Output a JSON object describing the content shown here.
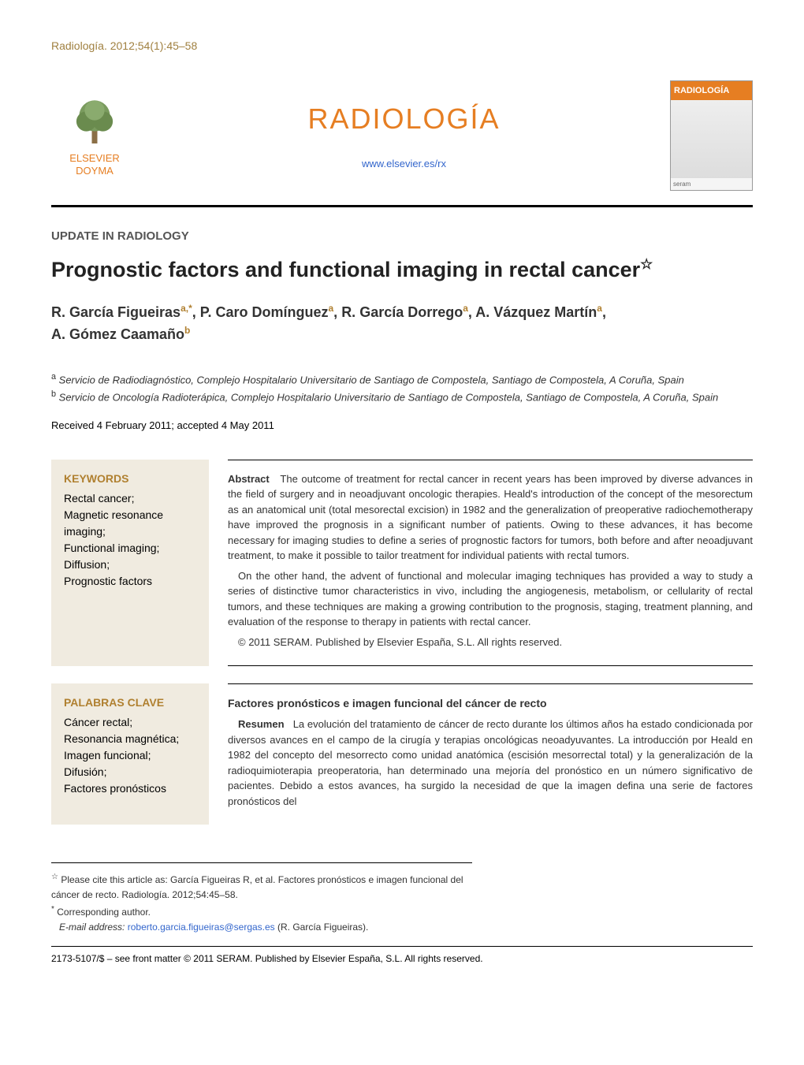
{
  "header": {
    "citation": "Radiología. 2012;54(1):45–58",
    "publisher": "ELSEVIER DOYMA",
    "journal_name": "RADIOLOGÍA",
    "url": "www.elsevier.es/rx",
    "cover_label": "RADIOLOGÍA",
    "cover_footer": "seram"
  },
  "article": {
    "section": "UPDATE IN RADIOLOGY",
    "title": "Prognostic factors and functional imaging in rectal cancer",
    "star": "☆",
    "authors_html": "R. García Figueiras",
    "authors": [
      {
        "name": "R. García Figueiras",
        "marks": "a,*"
      },
      {
        "name": "P. Caro Domínguez",
        "marks": "a"
      },
      {
        "name": "R. García Dorrego",
        "marks": "a"
      },
      {
        "name": "A. Vázquez Martín",
        "marks": "a"
      },
      {
        "name": "A. Gómez Caamaño",
        "marks": "b"
      }
    ],
    "affiliations": {
      "a": "Servicio de Radiodiagnóstico, Complejo Hospitalario Universitario de Santiago de Compostela, Santiago de Compostela, A Coruña, Spain",
      "b": "Servicio de Oncología Radioterápica, Complejo Hospitalario Universitario de Santiago de Compostela, Santiago de Compostela, A Coruña, Spain"
    },
    "dates": "Received 4 February 2011; accepted 4 May 2011"
  },
  "keywords_en": {
    "heading": "KEYWORDS",
    "items": "Rectal cancer;\nMagnetic resonance imaging;\nFunctional imaging;\nDiffusion;\nPrognostic factors"
  },
  "abstract_en": {
    "label": "Abstract",
    "para1": "The outcome of treatment for rectal cancer in recent years has been improved by diverse advances in the field of surgery and in neoadjuvant oncologic therapies. Heald's introduction of the concept of the mesorectum as an anatomical unit (total mesorectal excision) in 1982 and the generalization of preoperative radiochemotherapy have improved the prognosis in a significant number of patients. Owing to these advances, it has become necessary for imaging studies to define a series of prognostic factors for tumors, both before and after neoadjuvant treatment, to make it possible to tailor treatment for individual patients with rectal tumors.",
    "para2": "On the other hand, the advent of functional and molecular imaging techniques has provided a way to study a series of distinctive tumor characteristics in vivo, including the angiogenesis, metabolism, or cellularity of rectal tumors, and these techniques are making a growing contribution to the prognosis, staging, treatment planning, and evaluation of the response to therapy in patients with rectal cancer.",
    "copyright": "© 2011 SERAM. Published by Elsevier España, S.L. All rights reserved."
  },
  "keywords_es": {
    "heading": "PALABRAS CLAVE",
    "items": "Cáncer rectal;\nResonancia magnética;\nImagen funcional;\nDifusión;\nFactores pronósticos"
  },
  "abstract_es": {
    "title": "Factores pronósticos e imagen funcional del cáncer de recto",
    "label": "Resumen",
    "para1": "La evolución del tratamiento de cáncer de recto durante los últimos años ha estado condicionada por diversos avances en el campo de la cirugía y terapias oncológicas neoadyuvantes. La introducción por Heald en 1982 del concepto del mesorrecto como unidad anatómica (escisión mesorrectal total) y la generalización de la radioquimioterapia preoperatoria, han determinado una mejoría del pronóstico en un número significativo de pacientes. Debido a estos avances, ha surgido la necesidad de que la imagen defina una serie de factores pronósticos del"
  },
  "footnotes": {
    "cite_note": "Please cite this article as: García Figueiras R, et al. Factores pronósticos e imagen funcional del cáncer de recto. Radiología. 2012;54:45–58.",
    "corresponding": "Corresponding author.",
    "email_label": "E-mail address:",
    "email": "roberto.garcia.figueiras@sergas.es",
    "email_name": "(R. García Figueiras).",
    "bottom": "2173-5107/$ – see front matter © 2011 SERAM. Published by Elsevier España, S.L. All rights reserved."
  },
  "colors": {
    "accent": "#e67e22",
    "gold": "#b08030",
    "link": "#3366cc",
    "keywords_bg": "#f0ebe0"
  }
}
